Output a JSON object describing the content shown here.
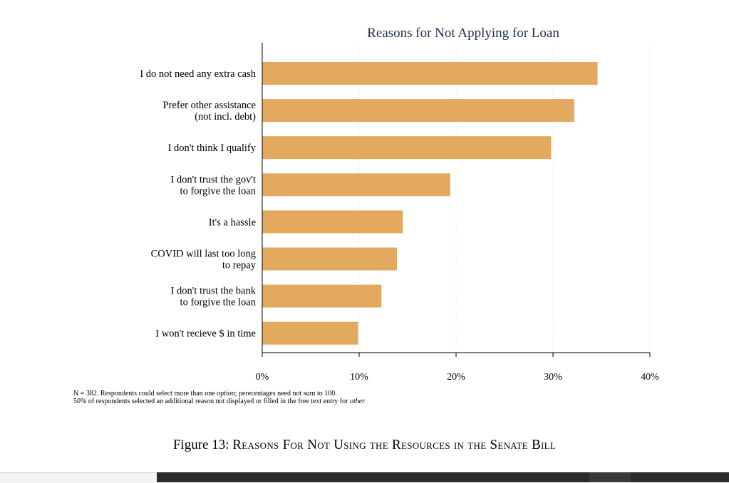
{
  "chart_data": {
    "type": "bar",
    "orientation": "horizontal",
    "title": "Reasons for Not Applying for Loan",
    "categories": [
      [
        "I do not need any extra cash"
      ],
      [
        "Prefer other assistance",
        "(not incl. debt)"
      ],
      [
        "I don't think I qualify"
      ],
      [
        "I don't trust the gov't",
        "to forgive the loan"
      ],
      [
        "It's a hassle"
      ],
      [
        "COVID will last too long",
        "to repay"
      ],
      [
        "I don't trust the bank",
        "to forgive the loan"
      ],
      [
        "I won't recieve $ in time"
      ]
    ],
    "values": [
      34.6,
      32.2,
      29.8,
      19.4,
      14.5,
      13.9,
      12.3,
      9.9
    ],
    "xlim": [
      0,
      40
    ],
    "xticks": [
      0,
      10,
      20,
      30,
      40
    ],
    "xtick_labels": [
      "0%",
      "10%",
      "20%",
      "30%",
      "40%"
    ],
    "bar_color": "#e3a95f",
    "grid": "vertical dotted at each tick",
    "legend": "none"
  },
  "note": {
    "line1": "N = 382. Respondents could select more than one option; perecentages need not sum to 100.",
    "line2_main": "50% of respondents selected an additional reason not displayed or filled in the free text entry for ",
    "line2_italic": "other"
  },
  "caption": {
    "prefix": "Figure 13: ",
    "text": "Reasons For Not Using the Resources in the Senate Bill"
  }
}
